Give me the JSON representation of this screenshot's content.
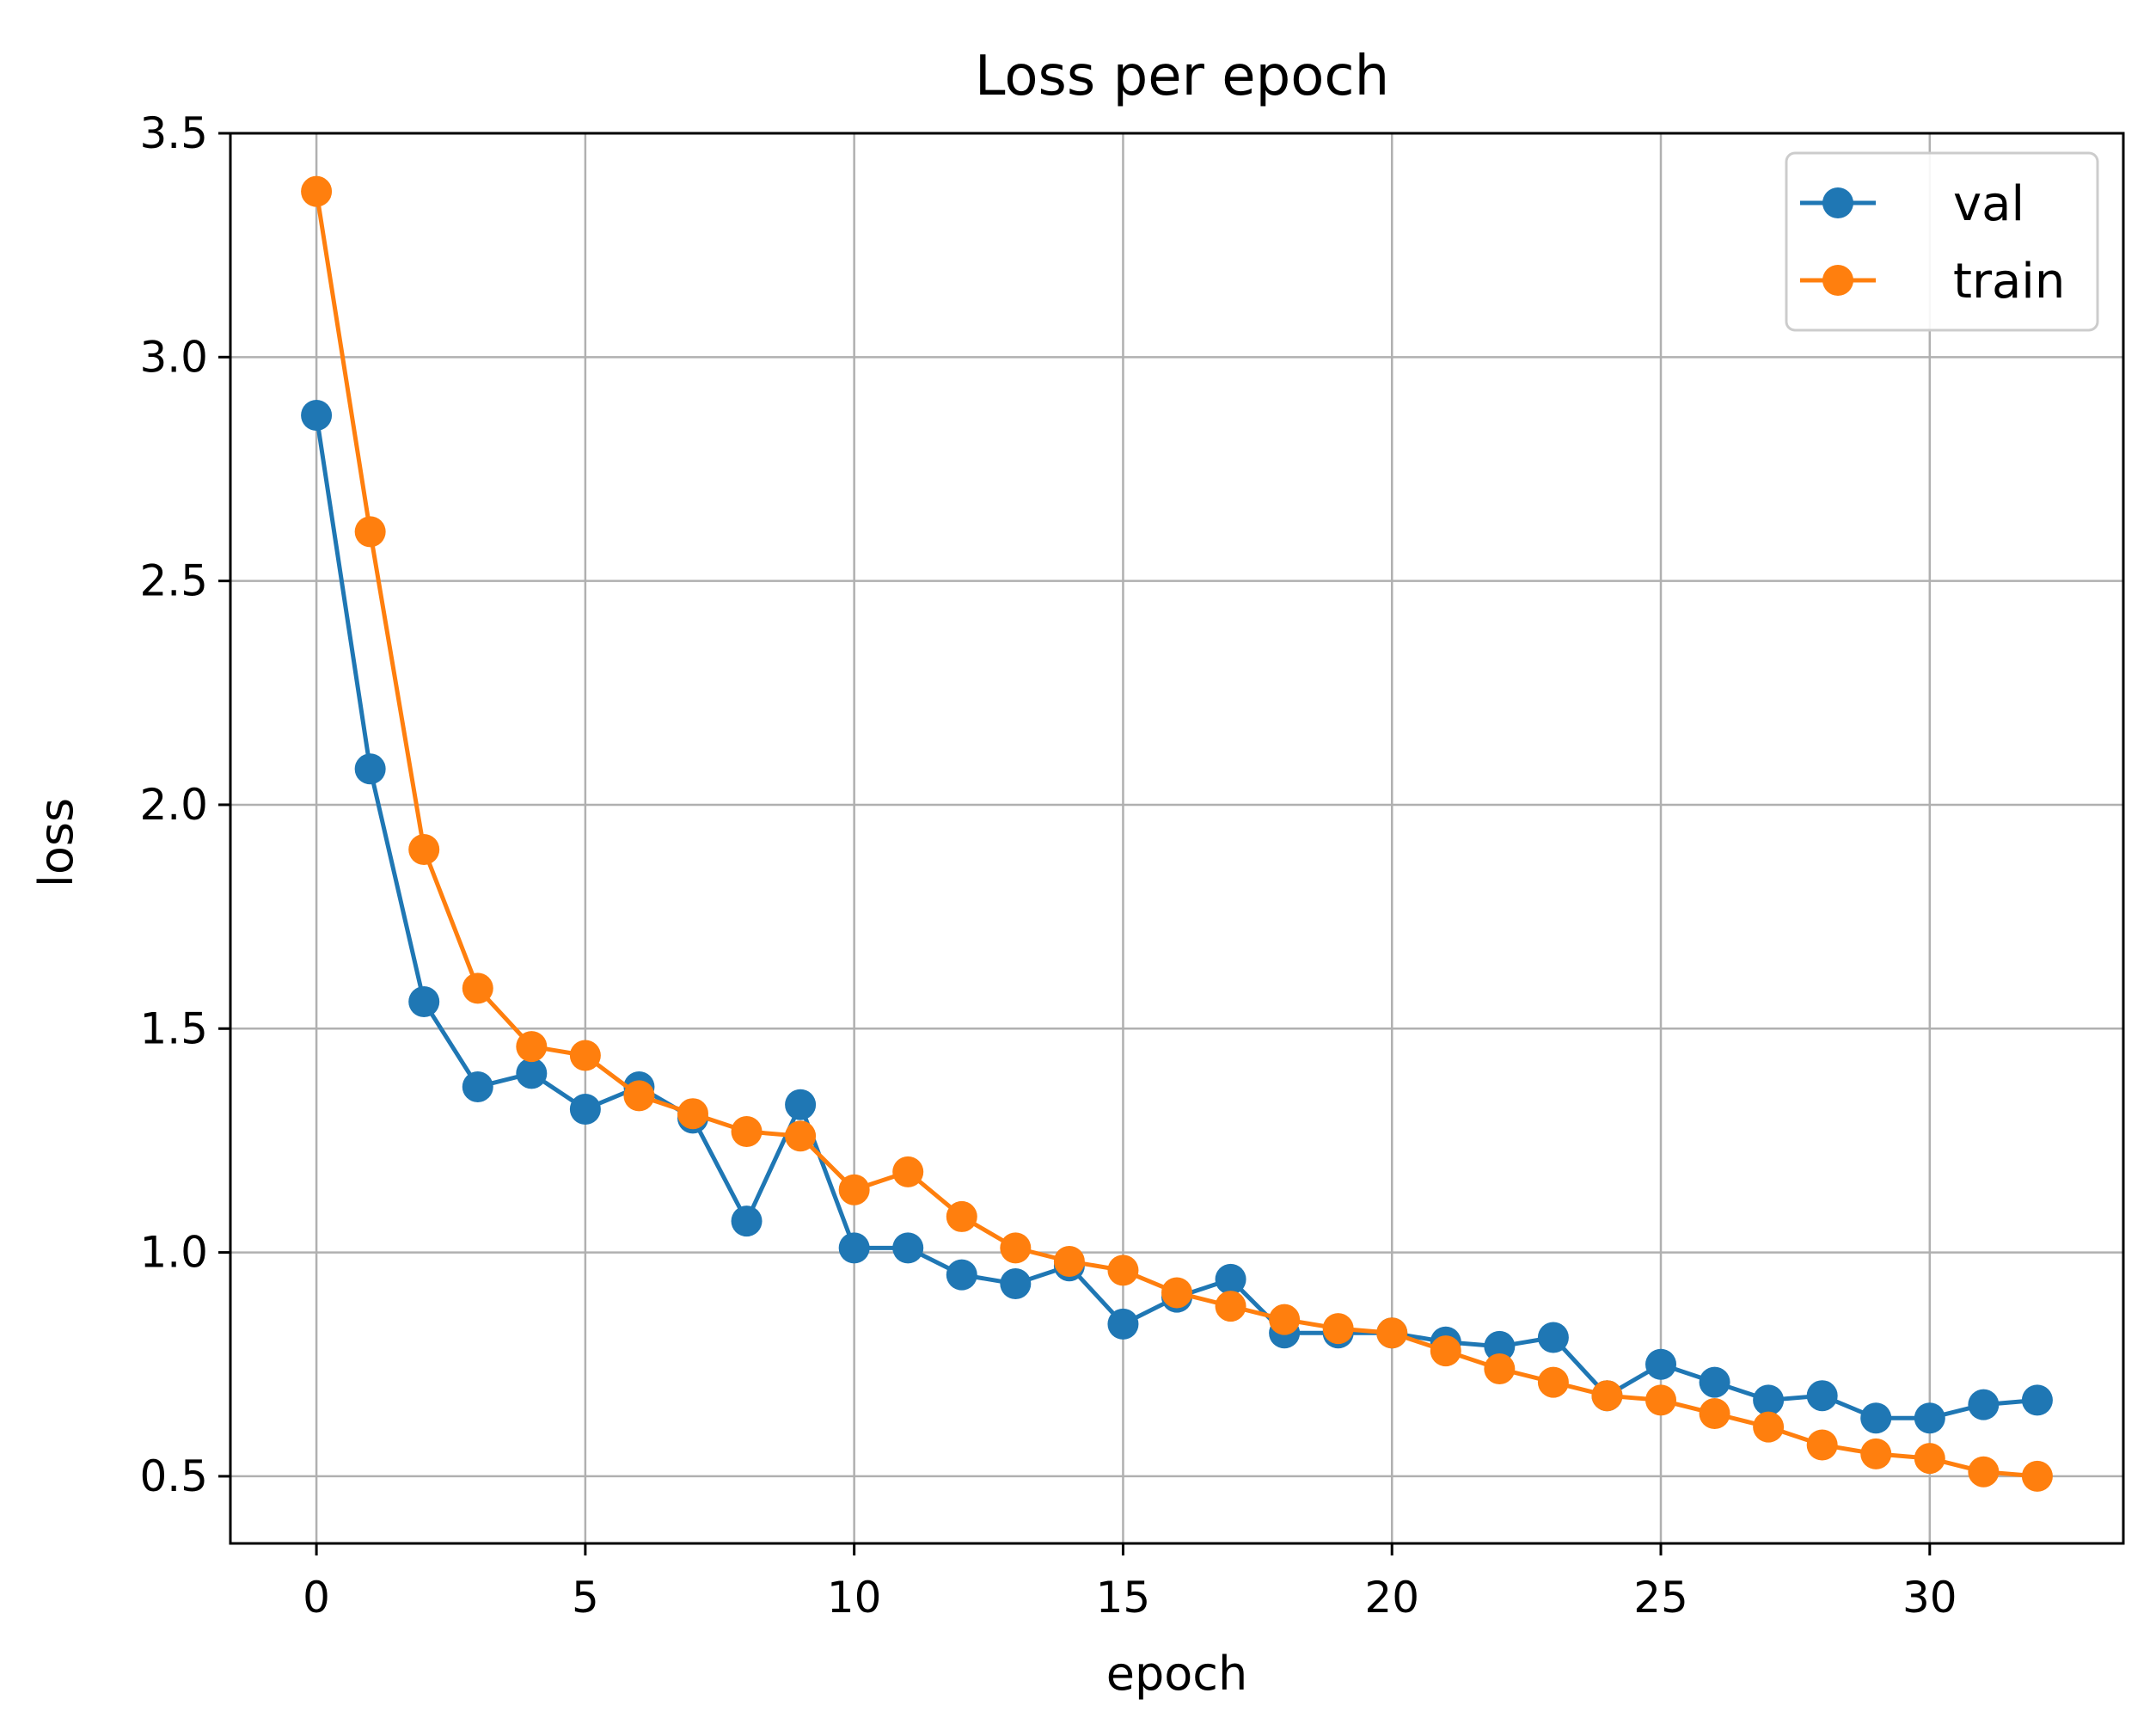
{
  "chart_data": {
    "type": "line",
    "title": "Loss per epoch",
    "xlabel": "epoch",
    "ylabel": "loss",
    "xlim": [
      -1.6,
      33.6
    ],
    "ylim": [
      0.35,
      3.5
    ],
    "xticks": [
      0,
      5,
      10,
      15,
      20,
      25,
      30
    ],
    "xtick_labels": [
      "0",
      "5",
      "10",
      "15",
      "20",
      "25",
      "30"
    ],
    "yticks": [
      0.5,
      1.0,
      1.5,
      2.0,
      2.5,
      3.0,
      3.5
    ],
    "ytick_labels": [
      "0.5",
      "1.0",
      "1.5",
      "2.0",
      "2.5",
      "3.0",
      "3.5"
    ],
    "grid": true,
    "legend_position": "top-right",
    "x": [
      0,
      1,
      2,
      3,
      4,
      5,
      6,
      7,
      8,
      9,
      10,
      11,
      12,
      13,
      14,
      15,
      16,
      17,
      18,
      19,
      20,
      21,
      22,
      23,
      24,
      25,
      26,
      27,
      28,
      29,
      30,
      31,
      32
    ],
    "series": [
      {
        "name": "val",
        "color": "#1f77b4",
        "values": [
          2.87,
          2.08,
          1.56,
          1.37,
          1.4,
          1.32,
          1.37,
          1.3,
          1.07,
          1.33,
          1.01,
          1.01,
          0.95,
          0.93,
          0.97,
          0.84,
          0.9,
          0.94,
          0.82,
          0.82,
          0.82,
          0.8,
          0.79,
          0.81,
          0.68,
          0.75,
          0.71,
          0.67,
          0.68,
          0.63,
          0.63,
          0.66,
          0.67
        ]
      },
      {
        "name": "train",
        "color": "#ff7f0e",
        "values": [
          3.37,
          2.61,
          1.9,
          1.59,
          1.46,
          1.44,
          1.35,
          1.31,
          1.27,
          1.26,
          1.14,
          1.18,
          1.08,
          1.01,
          0.98,
          0.96,
          0.91,
          0.88,
          0.85,
          0.83,
          0.82,
          0.78,
          0.74,
          0.71,
          0.68,
          0.67,
          0.64,
          0.61,
          0.57,
          0.55,
          0.54,
          0.51,
          0.5
        ]
      }
    ]
  }
}
